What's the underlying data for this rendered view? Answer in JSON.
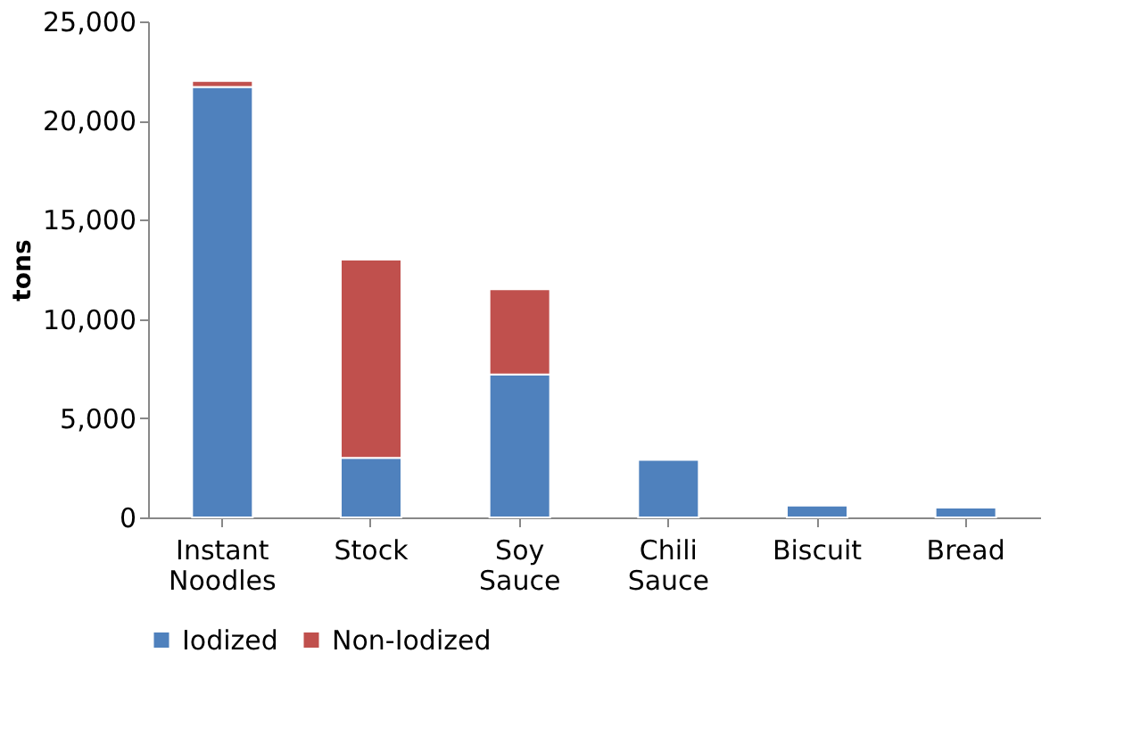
{
  "chart_data": {
    "type": "bar",
    "stacked": true,
    "ylabel": "tons",
    "categories": [
      "Instant Noodles",
      "Stock",
      "Soy Sauce",
      "Chili Sauce",
      "Biscuit",
      "Bread"
    ],
    "series": [
      {
        "name": "Iodized",
        "color": "#4f81bd",
        "values": [
          21700,
          3000,
          7200,
          2900,
          600,
          500
        ]
      },
      {
        "name": "Non-Iodized",
        "color": "#c0504d",
        "values": [
          300,
          10000,
          4300,
          null,
          null,
          null
        ]
      }
    ],
    "ylim": [
      0,
      25000
    ],
    "yticks": [
      0,
      {
        "value": 5000,
        "label": "5,000"
      },
      {
        "value": 10000,
        "label": "10,000"
      },
      {
        "value": 15000,
        "label": "15,000"
      },
      {
        "value": 20000,
        "label": "20,000"
      },
      {
        "value": 25000,
        "label": "25,000"
      }
    ],
    "grid": false,
    "legend": "bottom"
  }
}
